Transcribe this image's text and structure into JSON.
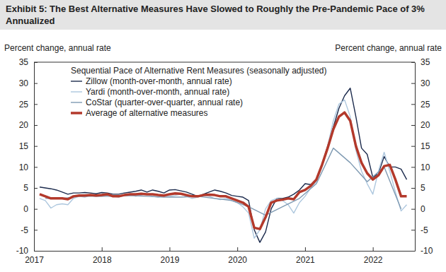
{
  "chart_data": {
    "type": "line",
    "title": "Exhibit 5: The Best Alternative Measures Have Slowed to Roughly the Pre-Pandemic Pace of 3% Annualized",
    "ylabel": "Percent change, annual rate",
    "y2label": "Percent change, annual rate",
    "legend_title": "Sequential Pace of Alternative Rent Measures (seasonally adjusted)",
    "legend": "top-left",
    "grid": false,
    "x": [
      2017.083,
      2017.167,
      2017.25,
      2017.333,
      2017.417,
      2017.5,
      2017.583,
      2017.667,
      2017.75,
      2017.833,
      2017.917,
      2018,
      2018.083,
      2018.167,
      2018.25,
      2018.333,
      2018.417,
      2018.5,
      2018.583,
      2018.667,
      2018.75,
      2018.833,
      2018.917,
      2019,
      2019.083,
      2019.167,
      2019.25,
      2019.333,
      2019.417,
      2019.5,
      2019.583,
      2019.667,
      2019.75,
      2019.833,
      2019.917,
      2020,
      2020.083,
      2020.167,
      2020.25,
      2020.333,
      2020.417,
      2020.5,
      2020.583,
      2020.667,
      2020.75,
      2020.833,
      2020.917,
      2021,
      2021.083,
      2021.167,
      2021.25,
      2021.333,
      2021.417,
      2021.5,
      2021.583,
      2021.667,
      2021.75,
      2021.833,
      2021.917,
      2022,
      2022.083,
      2022.167,
      2022.25,
      2022.333,
      2022.417,
      2022.5
    ],
    "xlim": [
      2017,
      2022.62
    ],
    "xticks": [
      2017,
      2018,
      2019,
      2020,
      2021,
      2022
    ],
    "ylim": [
      -10,
      35
    ],
    "yticks": [
      -10,
      -5,
      0,
      5,
      10,
      15,
      20,
      25,
      30,
      35
    ],
    "y2lim": [
      -10,
      35
    ],
    "y2ticks": [
      -10,
      -5,
      0,
      5,
      10,
      15,
      20,
      25,
      30,
      35
    ],
    "series": [
      {
        "name": "Zillow (month-over-month, annual rate)",
        "color": "#1c2b4d",
        "line_style": "solid",
        "values": [
          5.2,
          5.0,
          4.8,
          4.5,
          4.0,
          3.5,
          3.8,
          3.8,
          3.9,
          3.8,
          3.6,
          3.9,
          3.8,
          3.5,
          3.5,
          3.8,
          4.0,
          4.2,
          4.5,
          4.0,
          4.5,
          4.2,
          3.8,
          4.5,
          4.6,
          4.3,
          4.0,
          3.5,
          3.0,
          3.5,
          4.0,
          4.5,
          4.2,
          3.8,
          3.2,
          3.0,
          2.8,
          2.0,
          -5.0,
          -8.0,
          -5.5,
          0.0,
          2.5,
          2.5,
          2.8,
          3.5,
          4.5,
          6.0,
          5.8,
          7.0,
          10.5,
          15.0,
          19.5,
          24.0,
          27.0,
          28.8,
          22.0,
          14.5,
          13.0,
          7.5,
          8.5,
          12.5,
          10.0,
          10.0,
          9.5,
          7.0
        ]
      },
      {
        "name": "Yardi (month-over-month, annual rate)",
        "color": "#adc7de",
        "line_style": "solid",
        "values": [
          2.5,
          2.0,
          0.2,
          1.0,
          1.2,
          1.0,
          2.5,
          3.0,
          2.8,
          3.2,
          3.0,
          3.0,
          3.5,
          3.0,
          2.8,
          3.2,
          3.5,
          3.0,
          3.3,
          3.5,
          3.0,
          2.8,
          3.2,
          3.0,
          3.2,
          3.5,
          3.0,
          2.5,
          2.8,
          3.2,
          3.0,
          2.5,
          2.2,
          2.5,
          2.0,
          1.5,
          0.5,
          -1.0,
          -7.0,
          -5.0,
          0.0,
          2.0,
          2.5,
          2.0,
          1.0,
          -1.0,
          1.5,
          3.0,
          5.0,
          6.5,
          10.0,
          15.0,
          21.0,
          25.0,
          26.0,
          22.0,
          14.0,
          9.0,
          6.0,
          3.5,
          9.0,
          13.5,
          9.0,
          4.0,
          -0.5,
          1.0
        ]
      },
      {
        "name": "CoStar (quarter-over-quarter, annual rate)",
        "color": "#7f9ab2",
        "line_style": "solid",
        "x": [
          2017.167,
          2017.417,
          2017.667,
          2017.917,
          2018.167,
          2018.417,
          2018.667,
          2018.917,
          2019.167,
          2019.417,
          2019.667,
          2019.917,
          2020.167,
          2020.417,
          2020.667,
          2020.917,
          2021.167,
          2021.417,
          2021.667,
          2021.917,
          2022.167,
          2022.417
        ],
        "values": [
          2.5,
          2.5,
          3.0,
          3.0,
          3.0,
          3.2,
          3.0,
          2.8,
          2.8,
          3.0,
          2.5,
          2.0,
          0.5,
          -1.5,
          0.5,
          2.5,
          6.0,
          14.5,
          11.0,
          6.5,
          10.0,
          0.0
        ]
      },
      {
        "name": "Average of alternative measures",
        "color": "#b3392b",
        "line_style": "thick",
        "values": [
          3.5,
          3.0,
          2.5,
          2.5,
          2.5,
          2.3,
          3.0,
          3.2,
          3.2,
          3.3,
          3.2,
          3.3,
          3.5,
          3.0,
          3.0,
          3.3,
          3.5,
          3.5,
          3.6,
          3.5,
          3.5,
          3.3,
          3.2,
          3.5,
          3.7,
          3.6,
          3.3,
          3.0,
          3.0,
          3.3,
          3.4,
          3.3,
          3.0,
          3.0,
          2.5,
          2.0,
          1.5,
          0.5,
          -4.5,
          -4.8,
          -2.0,
          1.5,
          2.0,
          2.2,
          2.5,
          2.3,
          4.0,
          4.5,
          5.5,
          7.0,
          10.5,
          14.5,
          19.0,
          22.0,
          23.0,
          21.0,
          15.0,
          11.0,
          8.5,
          7.0,
          8.0,
          10.2,
          10.5,
          7.0,
          3.0,
          3.0
        ]
      }
    ]
  }
}
